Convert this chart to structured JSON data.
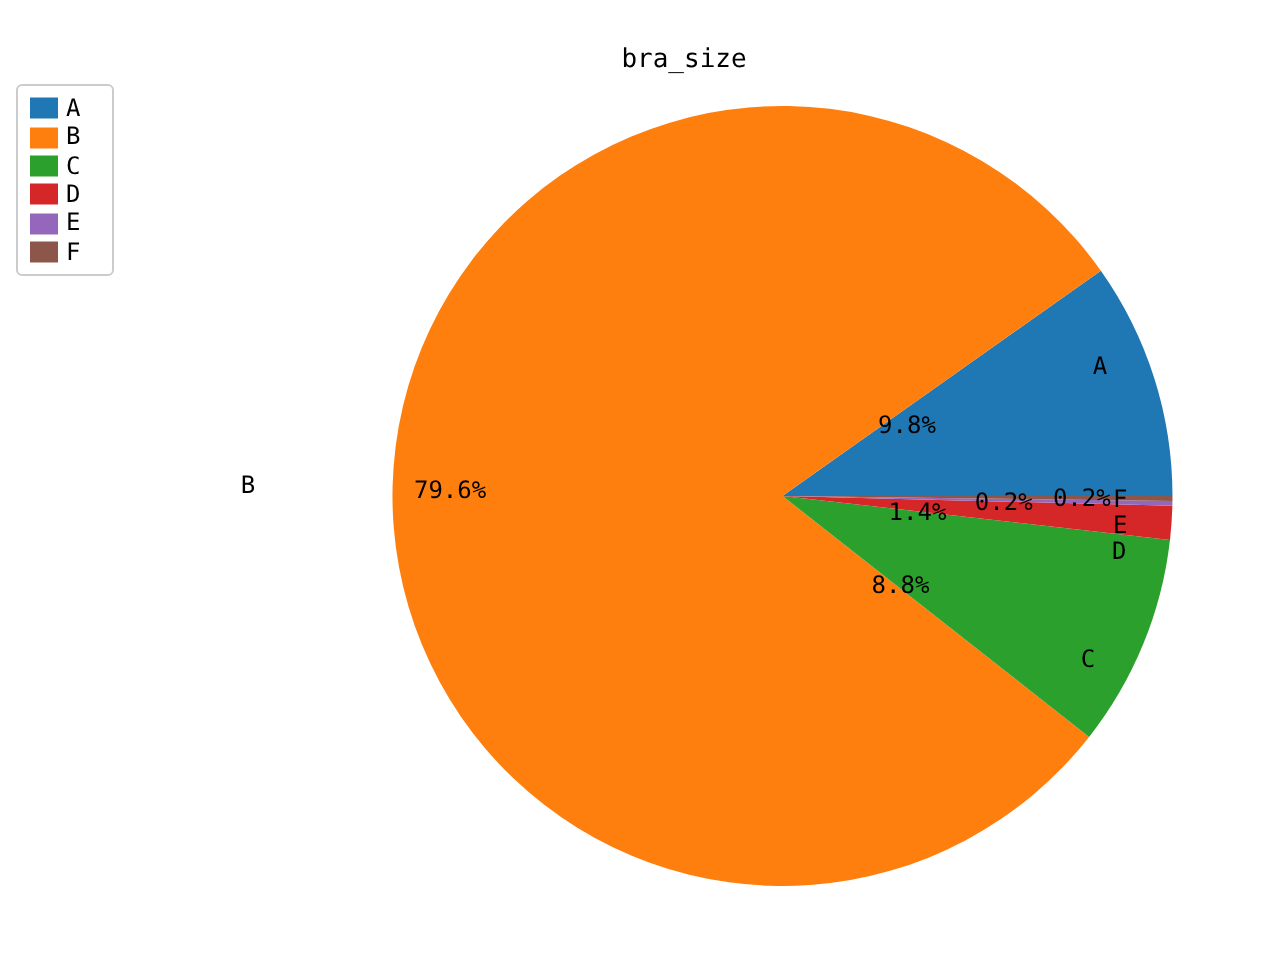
{
  "chart_data": {
    "type": "pie",
    "title": "bra_size",
    "categories": [
      "A",
      "B",
      "C",
      "D",
      "E",
      "F"
    ],
    "values": [
      9.8,
      79.6,
      8.8,
      1.4,
      0.2,
      0.2
    ],
    "colors": [
      "#1f77b4",
      "#ff7f0e",
      "#2ca02c",
      "#d62728",
      "#9467bd",
      "#8c564b"
    ],
    "value_labels": [
      "9.8%",
      "79.6%",
      "8.8%",
      "1.4%",
      "0.2%",
      "0.2%"
    ],
    "legend": "top left"
  }
}
